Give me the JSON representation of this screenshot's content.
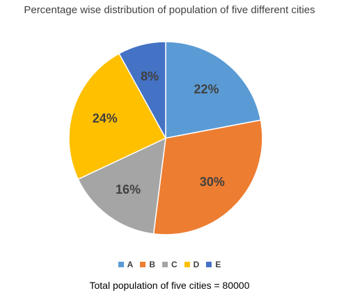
{
  "chart_data": {
    "type": "pie",
    "title": "Percentage wise distribution of population of five different cities",
    "categories": [
      "A",
      "B",
      "C",
      "D",
      "E"
    ],
    "values": [
      22,
      30,
      16,
      24,
      8
    ],
    "labels": [
      "22%",
      "30%",
      "16%",
      "24%",
      "8%"
    ],
    "colors": [
      "#5B9BD5",
      "#ED7D31",
      "#A5A5A5",
      "#FFC000",
      "#4472C4"
    ],
    "legend": "bottom",
    "start_angle": "12 o'clock",
    "direction": "clockwise"
  },
  "footnote": "Total population of five cities = 80000"
}
